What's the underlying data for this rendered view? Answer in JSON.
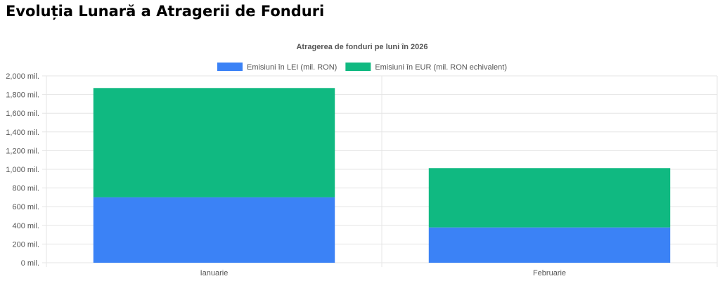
{
  "page": {
    "title": "Evoluția Lunară a Atragerii de Fonduri"
  },
  "chart_data": {
    "type": "bar",
    "stacked": true,
    "title": "Atragerea de fonduri pe luni în 2026",
    "categories": [
      "Ianuarie",
      "Februarie"
    ],
    "series": [
      {
        "name": "Emisiuni în LEI (mil. RON)",
        "color": "#3b82f6",
        "values": [
          700,
          378
        ]
      },
      {
        "name": "Emisiuni în EUR (mil. RON echivalent)",
        "color": "#10b981",
        "values": [
          1170,
          635
        ]
      }
    ],
    "ylim": [
      0,
      2000
    ],
    "ytick_step": 200,
    "ytick_suffix": " mil.",
    "grid": true,
    "legend_position": "top"
  }
}
